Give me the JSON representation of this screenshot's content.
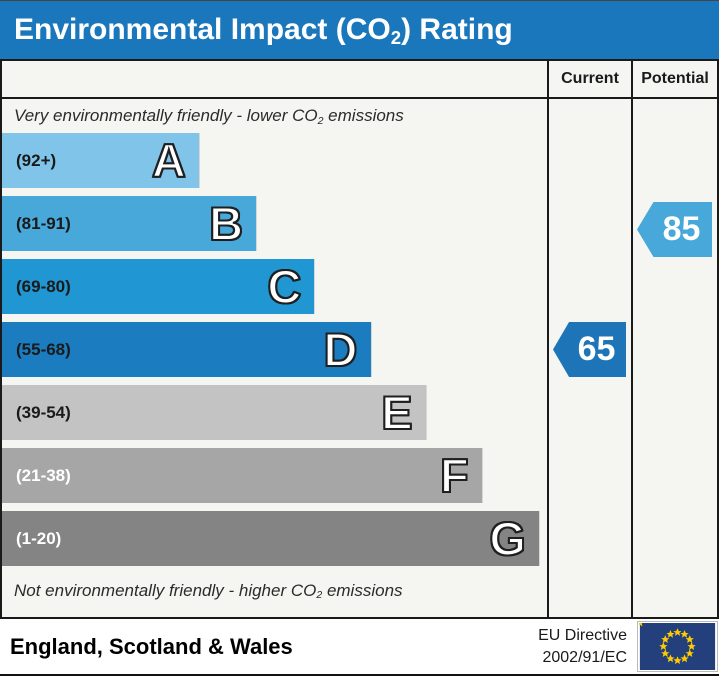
{
  "header": {
    "title_pre": "Environmental Impact (CO",
    "title_sub": "2",
    "title_post": ") Rating",
    "bg_color": "#1a77bc",
    "text_color": "#ffffff"
  },
  "table": {
    "columns": {
      "current": "Current",
      "potential": "Potential"
    },
    "top_note_pre": "Very environmentally friendly - lower CO",
    "top_note_sub": "2",
    "top_note_post": " emissions",
    "bottom_note_pre": "Not environmentally friendly - higher CO",
    "bottom_note_sub": "2",
    "bottom_note_post": " emissions"
  },
  "chart_data": {
    "type": "bar",
    "title": "Environmental Impact (CO2) Rating",
    "bands": [
      {
        "letter": "A",
        "range": "(92+)",
        "min": 92,
        "max": 100,
        "color": "#80c5e9",
        "width_pct": 36.3,
        "range_text_color": "#1a1a1a"
      },
      {
        "letter": "B",
        "range": "(81-91)",
        "min": 81,
        "max": 91,
        "color": "#47a8d9",
        "width_pct": 46.8,
        "range_text_color": "#1a1a1a"
      },
      {
        "letter": "C",
        "range": "(69-80)",
        "min": 69,
        "max": 80,
        "color": "#2096d2",
        "width_pct": 57.5,
        "range_text_color": "#1a1a1a"
      },
      {
        "letter": "D",
        "range": "(55-68)",
        "min": 55,
        "max": 68,
        "color": "#1b7cc0",
        "width_pct": 67.8,
        "range_text_color": "#1a1a1a"
      },
      {
        "letter": "E",
        "range": "(39-54)",
        "min": 39,
        "max": 54,
        "color": "#c3c3c3",
        "width_pct": 77.9,
        "range_text_color": "#1a1a1a"
      },
      {
        "letter": "F",
        "range": "(21-38)",
        "min": 21,
        "max": 38,
        "color": "#a6a6a6",
        "width_pct": 88.2,
        "range_text_color": "#ffffff"
      },
      {
        "letter": "G",
        "range": "(1-20)",
        "min": 1,
        "max": 20,
        "color": "#848484",
        "width_pct": 98.7,
        "range_text_color": "#ffffff"
      }
    ],
    "current": {
      "value": 65,
      "band": "D",
      "color": "#1d74b7"
    },
    "potential": {
      "value": 85,
      "band": "B",
      "color": "#47a8d9"
    }
  },
  "footer": {
    "region": "England, Scotland & Wales",
    "directive_line1": "EU Directive",
    "directive_line2": "2002/91/EC",
    "flag_colors": {
      "field": "#24407c",
      "stars": "#ffcc00"
    }
  }
}
